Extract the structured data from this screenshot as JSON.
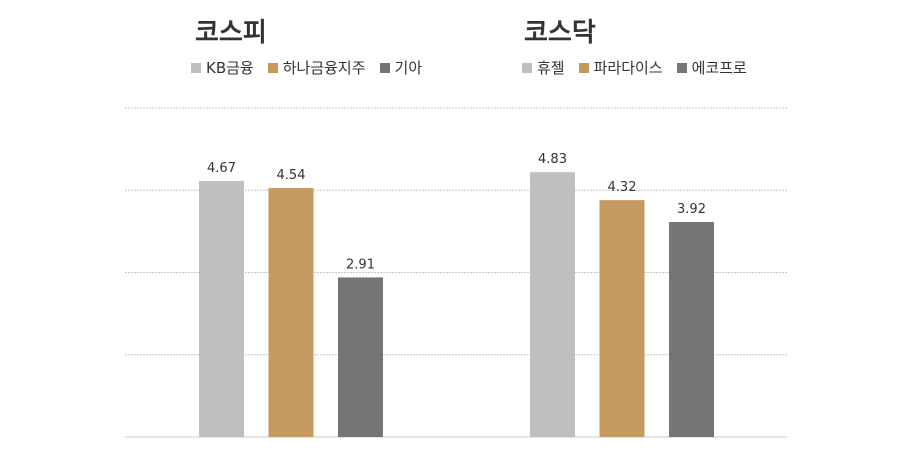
{
  "chart_data": [
    {
      "type": "bar",
      "title": "코스피",
      "categories": [
        "KB금융",
        "하나금융지주",
        "기아"
      ],
      "values": [
        4.67,
        4.54,
        2.91
      ],
      "ylim": [
        0,
        6
      ],
      "grid": true,
      "legend": "top"
    },
    {
      "type": "bar",
      "title": "코스닥",
      "categories": [
        "휴젤",
        "파라다이스",
        "에코프로"
      ],
      "values": [
        4.83,
        4.32,
        3.92
      ],
      "ylim": [
        0,
        6
      ],
      "grid": true,
      "legend": "top"
    }
  ],
  "colors": [
    "#bfbfbf",
    "#c49a61",
    "#757575"
  ]
}
